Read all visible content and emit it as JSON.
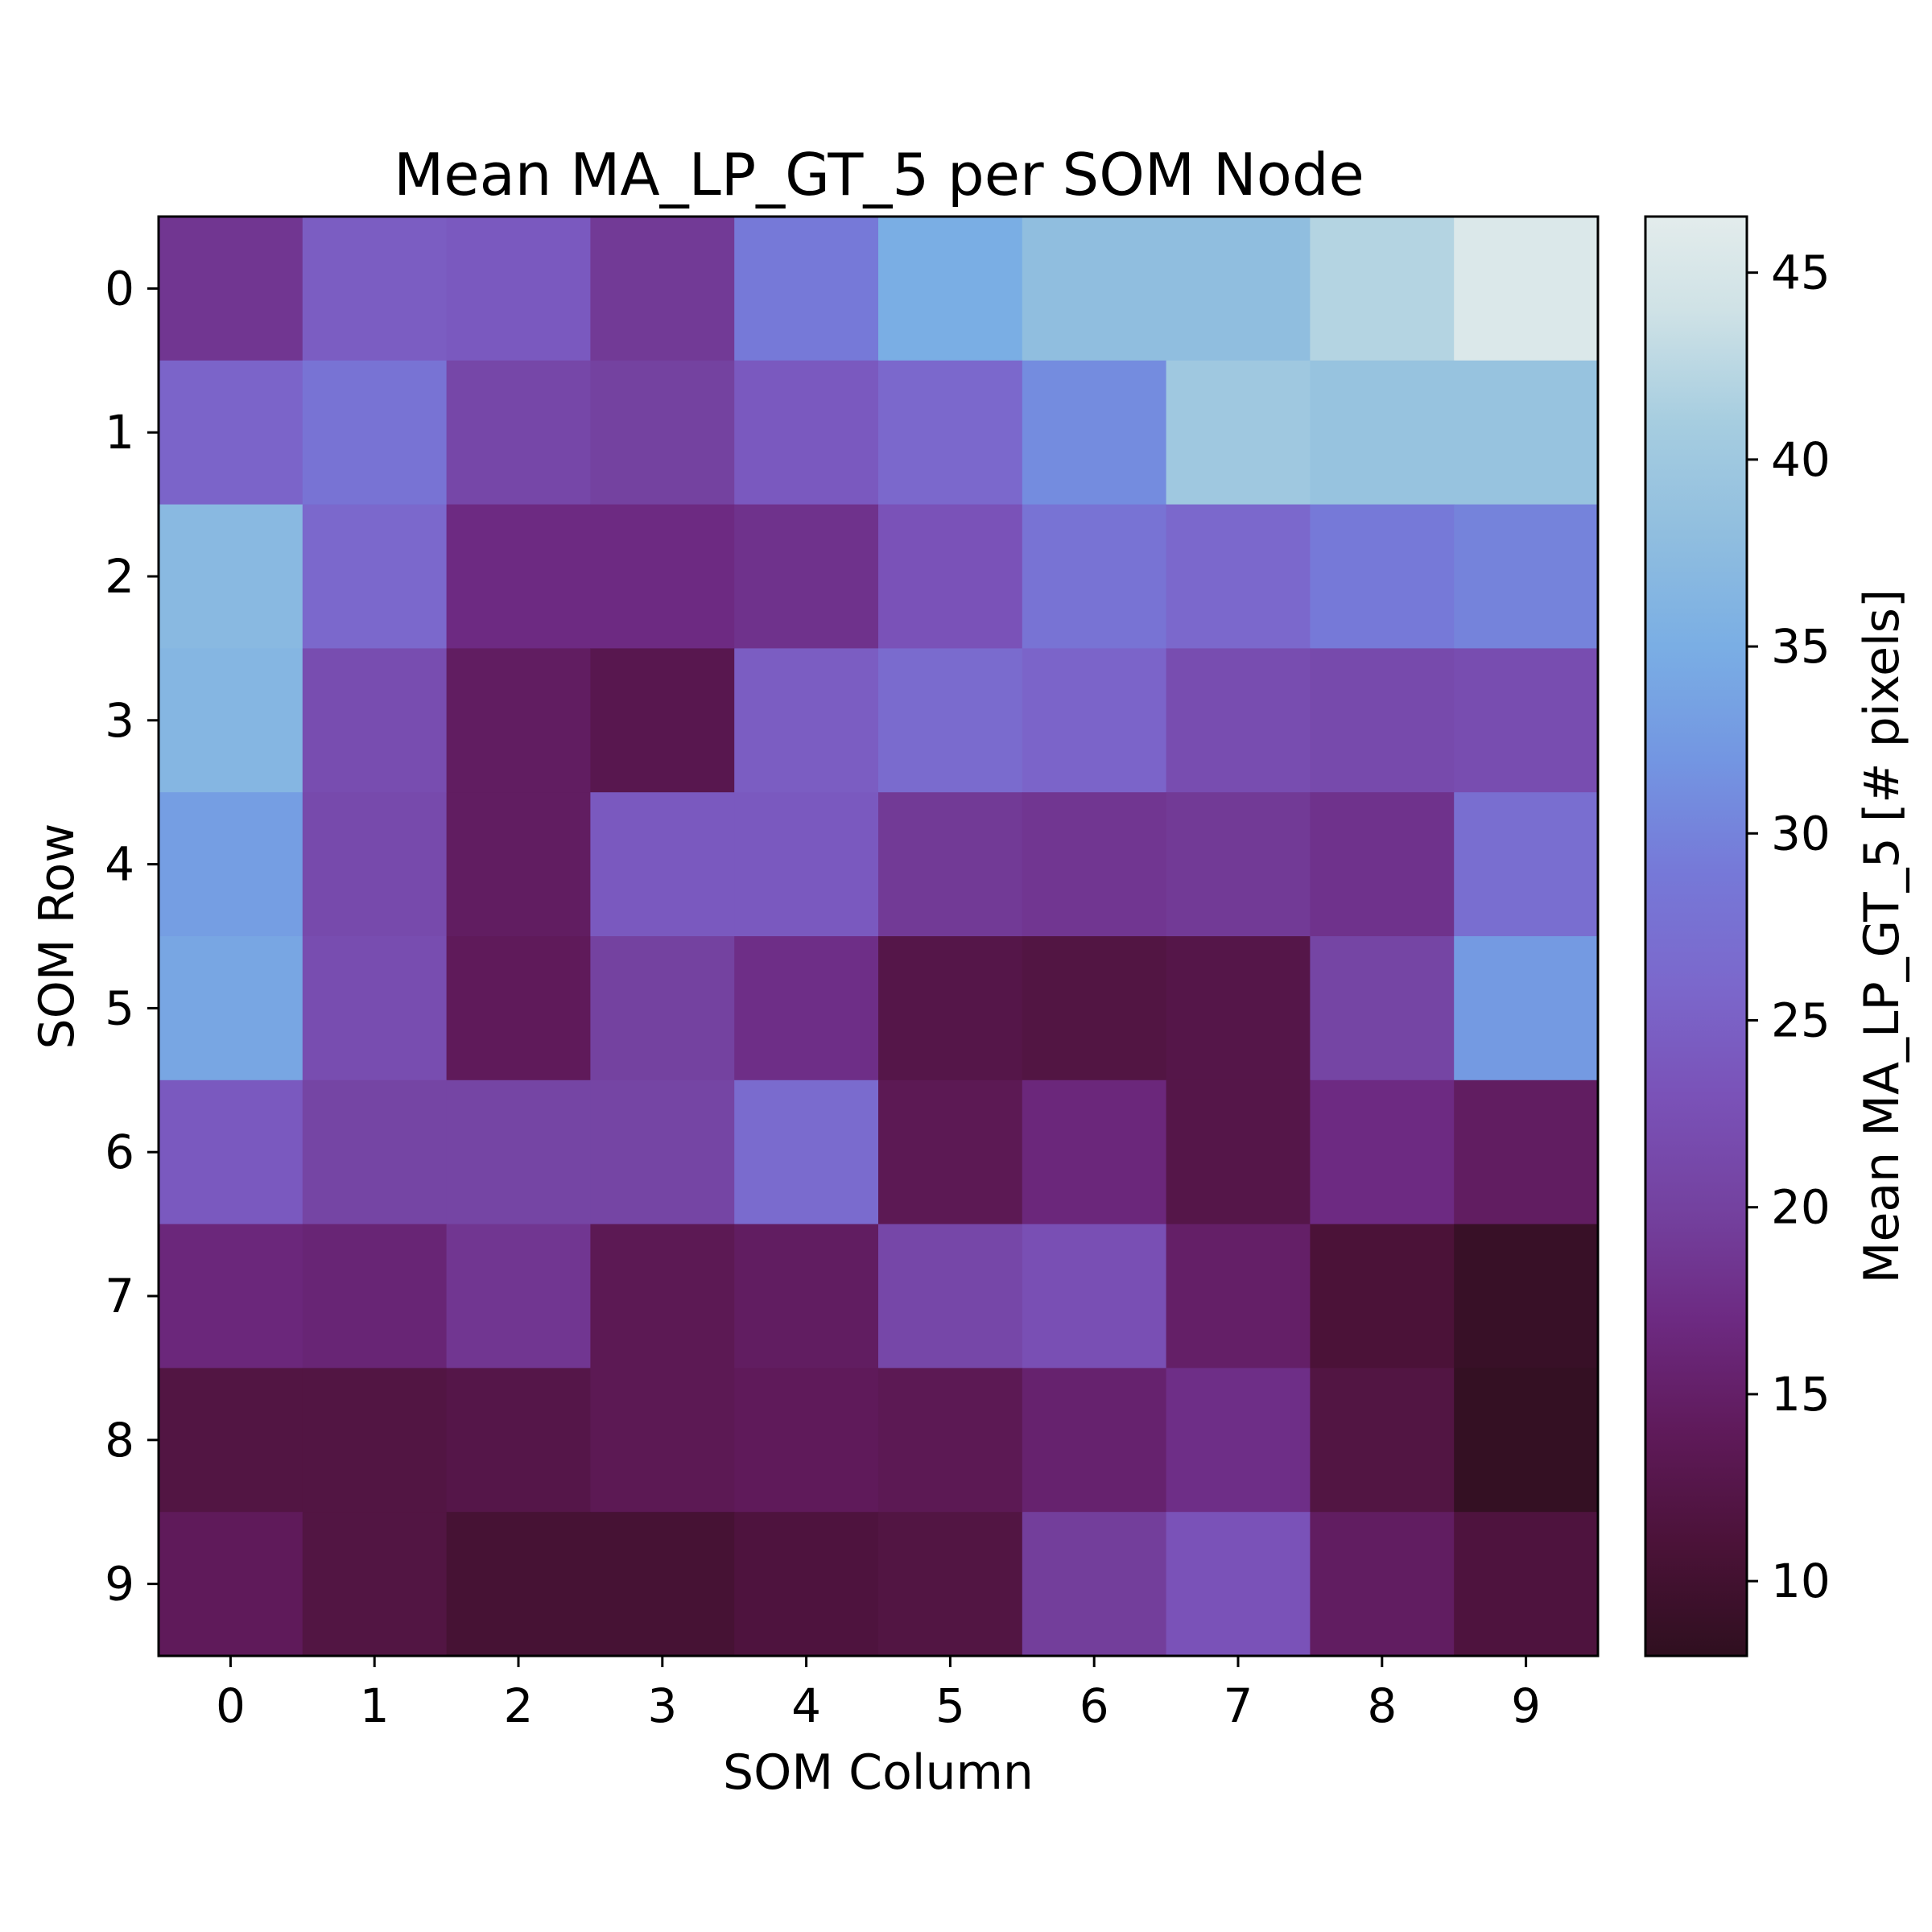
{
  "chart_data": {
    "type": "heatmap",
    "title": "Mean MA_LP_GT_5 per SOM Node",
    "xlabel": "SOM Column",
    "ylabel": "SOM Row",
    "colorbar_label": "Mean MA_LP_GT_5 [# pixels]",
    "x_categories": [
      "0",
      "1",
      "2",
      "3",
      "4",
      "5",
      "6",
      "7",
      "8",
      "9"
    ],
    "y_categories": [
      "0",
      "1",
      "2",
      "3",
      "4",
      "5",
      "6",
      "7",
      "8",
      "9"
    ],
    "colorbar_range": [
      8,
      46.5
    ],
    "colorbar_ticks": [
      10,
      15,
      20,
      25,
      30,
      35,
      40,
      45
    ],
    "colormap": "twilight_shifted (lower half): dark purple to light cyan-white",
    "colormap_stops": [
      {
        "v": 8,
        "color": "#2f0f1f"
      },
      {
        "v": 11,
        "color": "#4b1238"
      },
      {
        "v": 14,
        "color": "#5f1a5a"
      },
      {
        "v": 17,
        "color": "#6d2a82"
      },
      {
        "v": 20,
        "color": "#7442a0"
      },
      {
        "v": 23,
        "color": "#7a52b8"
      },
      {
        "v": 26,
        "color": "#7b68cc"
      },
      {
        "v": 29,
        "color": "#7679d8"
      },
      {
        "v": 32,
        "color": "#7396e2"
      },
      {
        "v": 35,
        "color": "#7aaee4"
      },
      {
        "v": 38,
        "color": "#90bedf"
      },
      {
        "v": 41,
        "color": "#a6cde0"
      },
      {
        "v": 44,
        "color": "#cfe2e6"
      },
      {
        "v": 46.5,
        "color": "#e3ecec"
      }
    ],
    "values": [
      [
        18.5,
        24.5,
        24.0,
        19.0,
        29.0,
        35.0,
        38.0,
        38.0,
        42.0,
        45.5
      ],
      [
        25.5,
        28.0,
        21.0,
        20.0,
        24.0,
        26.0,
        31.0,
        40.0,
        39.0,
        39.0
      ],
      [
        37.0,
        26.0,
        17.0,
        17.0,
        18.0,
        23.0,
        28.0,
        26.0,
        29.0,
        30.0
      ],
      [
        36.5,
        22.0,
        14.5,
        13.0,
        24.5,
        26.5,
        25.5,
        22.0,
        21.5,
        22.0
      ],
      [
        33.0,
        21.5,
        14.5,
        24.0,
        24.0,
        19.0,
        18.5,
        19.0,
        18.0,
        27.0
      ],
      [
        34.0,
        22.0,
        14.0,
        20.0,
        17.5,
        12.5,
        12.0,
        12.5,
        20.5,
        32.5
      ],
      [
        24.0,
        20.5,
        20.5,
        20.5,
        26.5,
        13.5,
        16.5,
        12.5,
        17.0,
        14.5
      ],
      [
        16.5,
        16.0,
        18.5,
        13.5,
        14.5,
        21.0,
        22.5,
        15.0,
        11.0,
        9.0
      ],
      [
        12.0,
        12.0,
        12.5,
        13.5,
        14.0,
        13.5,
        15.5,
        17.5,
        12.0,
        8.5
      ],
      [
        14.0,
        12.0,
        10.5,
        10.5,
        11.5,
        12.0,
        19.5,
        23.0,
        14.5,
        11.5
      ]
    ]
  }
}
